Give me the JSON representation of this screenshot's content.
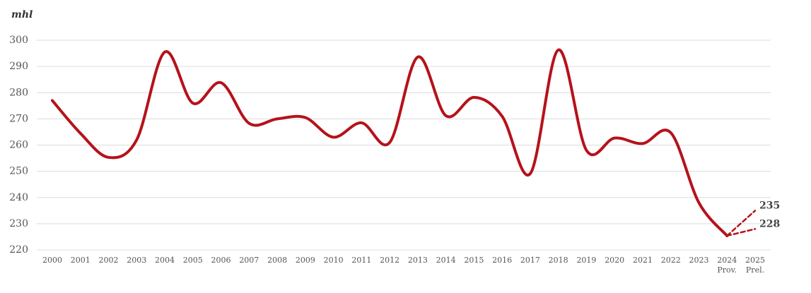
{
  "chart_data": {
    "type": "line",
    "unit_label": "mhl",
    "categories": [
      "2000",
      "2001",
      "2002",
      "2003",
      "2004",
      "2005",
      "2006",
      "2007",
      "2008",
      "2009",
      "2010",
      "2011",
      "2012",
      "2013",
      "2014",
      "2015",
      "2016",
      "2017",
      "2018",
      "2019",
      "2020",
      "2021",
      "2022",
      "2023",
      "2024",
      "2025"
    ],
    "category_notes": [
      null,
      null,
      null,
      null,
      null,
      null,
      null,
      null,
      null,
      null,
      null,
      null,
      null,
      null,
      null,
      null,
      null,
      null,
      null,
      null,
      null,
      null,
      null,
      null,
      "Prov.",
      "Prel."
    ],
    "series": [
      {
        "color": "#b5121b",
        "dashed": false,
        "values": [
          277,
          264.5,
          255.3,
          262,
          295.5,
          276,
          283.8,
          268.3,
          270,
          270.5,
          263,
          268.5,
          261,
          293.6,
          271.2,
          278.2,
          271,
          249.1,
          296.3,
          258,
          262.7,
          260.6,
          264.7,
          238,
          225.4,
          null
        ]
      },
      {
        "color": "#b5121b",
        "dashed": true,
        "show_end_label": true,
        "values": [
          null,
          null,
          null,
          null,
          null,
          null,
          null,
          null,
          null,
          null,
          null,
          null,
          null,
          null,
          null,
          null,
          null,
          null,
          null,
          null,
          null,
          null,
          null,
          null,
          225.4,
          235
        ]
      },
      {
        "color": "#b5121b",
        "dashed": true,
        "show_end_label": true,
        "values": [
          null,
          null,
          null,
          null,
          null,
          null,
          null,
          null,
          null,
          null,
          null,
          null,
          null,
          null,
          null,
          null,
          null,
          null,
          null,
          null,
          null,
          null,
          null,
          null,
          225.4,
          228
        ]
      }
    ],
    "ylim": [
      220,
      300
    ],
    "yticks": [
      220,
      230,
      240,
      250,
      260,
      270,
      280,
      290,
      300
    ],
    "grid": true
  }
}
